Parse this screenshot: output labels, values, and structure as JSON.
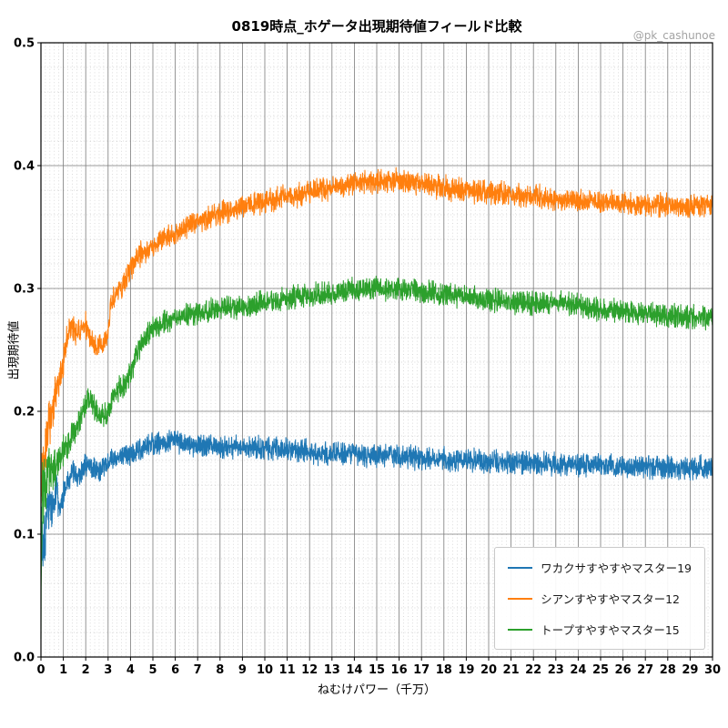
{
  "chart_data": {
    "type": "line",
    "title": "0819時点_ホゲータ出現期待値フィールド比較",
    "watermark": "@pk_cashunoe",
    "xlabel": "ねむけパワー（千万）",
    "ylabel": "出現期待値",
    "xlim": [
      0,
      30
    ],
    "ylim": [
      0,
      0.5
    ],
    "xtick_labels": [
      "0",
      "1",
      "2",
      "3",
      "4",
      "5",
      "6",
      "7",
      "8",
      "9",
      "10",
      "11",
      "12",
      "13",
      "14",
      "15",
      "16",
      "17",
      "18",
      "19",
      "20",
      "21",
      "22",
      "23",
      "24",
      "25",
      "26",
      "27",
      "28",
      "29",
      "30"
    ],
    "ytick_labels": [
      "0.0",
      "0.1",
      "0.2",
      "0.3",
      "0.4",
      "0.5"
    ],
    "x_minor_step": 0.2,
    "y_minor_step": 0.02,
    "grid": true,
    "legend_position": "lower right",
    "series": [
      {
        "name": "ワカクサすやすやマスター19",
        "color": "#1f77b4",
        "noise": 0.007,
        "points": [
          [
            0,
            0.105
          ],
          [
            0.15,
            0.095
          ],
          [
            0.3,
            0.125
          ],
          [
            0.5,
            0.12
          ],
          [
            0.7,
            0.135
          ],
          [
            0.9,
            0.12
          ],
          [
            1.1,
            0.14
          ],
          [
            1.4,
            0.15
          ],
          [
            1.7,
            0.148
          ],
          [
            2,
            0.158
          ],
          [
            2.3,
            0.155
          ],
          [
            2.6,
            0.152
          ],
          [
            3,
            0.158
          ],
          [
            3.5,
            0.163
          ],
          [
            4,
            0.164
          ],
          [
            4.5,
            0.17
          ],
          [
            5,
            0.173
          ],
          [
            5.5,
            0.175
          ],
          [
            6,
            0.176
          ],
          [
            6.5,
            0.174
          ],
          [
            7,
            0.173
          ],
          [
            8,
            0.17
          ],
          [
            9,
            0.171
          ],
          [
            10,
            0.17
          ],
          [
            11,
            0.168
          ],
          [
            12,
            0.167
          ],
          [
            13,
            0.166
          ],
          [
            14,
            0.165
          ],
          [
            15,
            0.164
          ],
          [
            16,
            0.164
          ],
          [
            17,
            0.162
          ],
          [
            18,
            0.161
          ],
          [
            19,
            0.16
          ],
          [
            20,
            0.159
          ],
          [
            21,
            0.158
          ],
          [
            22,
            0.158
          ],
          [
            23,
            0.157
          ],
          [
            24,
            0.156
          ],
          [
            25,
            0.156
          ],
          [
            26,
            0.155
          ],
          [
            27,
            0.155
          ],
          [
            28,
            0.154
          ],
          [
            29,
            0.154
          ],
          [
            30,
            0.154
          ]
        ]
      },
      {
        "name": "シアンすやすやマスター12",
        "color": "#ff7f0e",
        "noise": 0.007,
        "points": [
          [
            0,
            0.145
          ],
          [
            0.2,
            0.17
          ],
          [
            0.4,
            0.19
          ],
          [
            0.6,
            0.21
          ],
          [
            0.8,
            0.225
          ],
          [
            1,
            0.24
          ],
          [
            1.2,
            0.262
          ],
          [
            1.4,
            0.268
          ],
          [
            1.6,
            0.263
          ],
          [
            1.8,
            0.268
          ],
          [
            2,
            0.27
          ],
          [
            2.2,
            0.258
          ],
          [
            2.5,
            0.252
          ],
          [
            2.8,
            0.253
          ],
          [
            3,
            0.26
          ],
          [
            3.1,
            0.285
          ],
          [
            3.3,
            0.295
          ],
          [
            3.6,
            0.3
          ],
          [
            4,
            0.315
          ],
          [
            4.4,
            0.327
          ],
          [
            4.8,
            0.333
          ],
          [
            5.2,
            0.337
          ],
          [
            5.6,
            0.341
          ],
          [
            6,
            0.344
          ],
          [
            6.5,
            0.35
          ],
          [
            7,
            0.355
          ],
          [
            7.5,
            0.358
          ],
          [
            8,
            0.361
          ],
          [
            8.5,
            0.363
          ],
          [
            9,
            0.366
          ],
          [
            9.5,
            0.368
          ],
          [
            10,
            0.37
          ],
          [
            10.5,
            0.373
          ],
          [
            11,
            0.375
          ],
          [
            11.5,
            0.376
          ],
          [
            12,
            0.378
          ],
          [
            12.5,
            0.38
          ],
          [
            13,
            0.382
          ],
          [
            13.5,
            0.383
          ],
          [
            14,
            0.385
          ],
          [
            14.5,
            0.386
          ],
          [
            15,
            0.387
          ],
          [
            15.5,
            0.388
          ],
          [
            16,
            0.388
          ],
          [
            16.5,
            0.386
          ],
          [
            17,
            0.384
          ],
          [
            17.5,
            0.383
          ],
          [
            18,
            0.382
          ],
          [
            18.5,
            0.381
          ],
          [
            19,
            0.38
          ],
          [
            19.5,
            0.379
          ],
          [
            20,
            0.378
          ],
          [
            21,
            0.377
          ],
          [
            22,
            0.375
          ],
          [
            23,
            0.373
          ],
          [
            24,
            0.371
          ],
          [
            25,
            0.37
          ],
          [
            26,
            0.369
          ],
          [
            27,
            0.368
          ],
          [
            28,
            0.368
          ],
          [
            29,
            0.367
          ],
          [
            30,
            0.367
          ]
        ]
      },
      {
        "name": "トープすやすやマスター15",
        "color": "#2ca02c",
        "noise": 0.007,
        "points": [
          [
            0,
            0.01
          ],
          [
            0.05,
            0.13
          ],
          [
            0.2,
            0.145
          ],
          [
            0.4,
            0.15
          ],
          [
            0.6,
            0.155
          ],
          [
            0.8,
            0.16
          ],
          [
            1,
            0.168
          ],
          [
            1.3,
            0.178
          ],
          [
            1.6,
            0.188
          ],
          [
            1.9,
            0.2
          ],
          [
            2.1,
            0.21
          ],
          [
            2.3,
            0.205
          ],
          [
            2.6,
            0.198
          ],
          [
            2.9,
            0.197
          ],
          [
            3,
            0.2
          ],
          [
            3.2,
            0.21
          ],
          [
            3.5,
            0.218
          ],
          [
            3.8,
            0.224
          ],
          [
            4,
            0.23
          ],
          [
            4.2,
            0.243
          ],
          [
            4.5,
            0.256
          ],
          [
            4.8,
            0.263
          ],
          [
            5,
            0.267
          ],
          [
            5.3,
            0.271
          ],
          [
            5.6,
            0.274
          ],
          [
            6,
            0.276
          ],
          [
            6.5,
            0.278
          ],
          [
            7,
            0.28
          ],
          [
            7.5,
            0.282
          ],
          [
            8,
            0.284
          ],
          [
            8.5,
            0.285
          ],
          [
            9,
            0.286
          ],
          [
            9.5,
            0.287
          ],
          [
            10,
            0.289
          ],
          [
            10.5,
            0.29
          ],
          [
            11,
            0.292
          ],
          [
            11.5,
            0.293
          ],
          [
            12,
            0.295
          ],
          [
            12.5,
            0.296
          ],
          [
            13,
            0.297
          ],
          [
            13.5,
            0.298
          ],
          [
            14,
            0.299
          ],
          [
            14.5,
            0.3
          ],
          [
            15,
            0.3
          ],
          [
            15.5,
            0.3
          ],
          [
            16,
            0.3
          ],
          [
            16.5,
            0.299
          ],
          [
            17,
            0.297
          ],
          [
            17.5,
            0.296
          ],
          [
            18,
            0.295
          ],
          [
            18.5,
            0.294
          ],
          [
            19,
            0.293
          ],
          [
            19.5,
            0.292
          ],
          [
            20,
            0.291
          ],
          [
            20.5,
            0.29
          ],
          [
            21,
            0.289
          ],
          [
            21.5,
            0.289
          ],
          [
            22,
            0.288
          ],
          [
            22.5,
            0.289
          ],
          [
            23,
            0.29
          ],
          [
            23.5,
            0.288
          ],
          [
            24,
            0.286
          ],
          [
            24.5,
            0.284
          ],
          [
            25,
            0.283
          ],
          [
            25.5,
            0.282
          ],
          [
            26,
            0.281
          ],
          [
            26.5,
            0.28
          ],
          [
            27,
            0.28
          ],
          [
            27.5,
            0.279
          ],
          [
            28,
            0.278
          ],
          [
            28.5,
            0.278
          ],
          [
            29,
            0.277
          ],
          [
            29.5,
            0.277
          ],
          [
            30,
            0.277
          ]
        ]
      }
    ]
  }
}
